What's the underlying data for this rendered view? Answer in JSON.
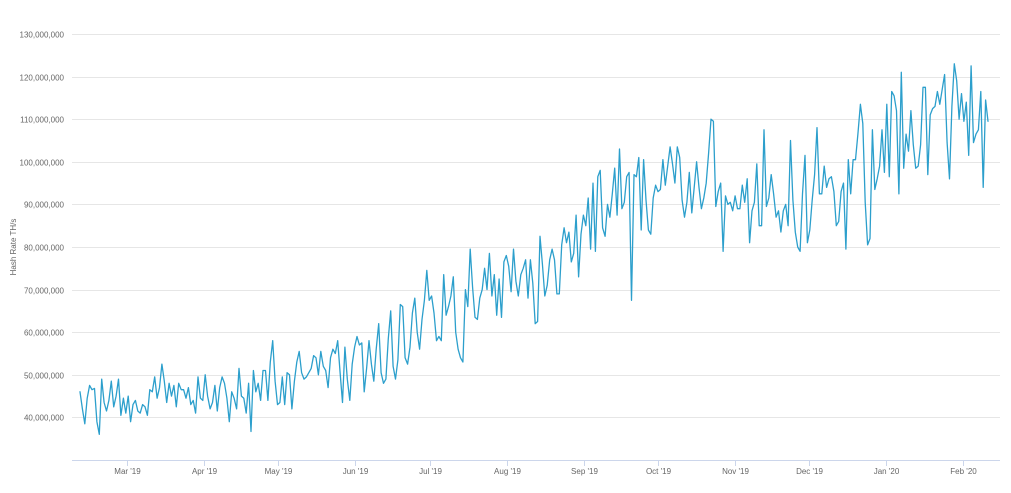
{
  "chart_data": {
    "type": "line",
    "title": "",
    "xlabel": "",
    "ylabel": "Hash Rate TH/s",
    "ylim": [
      30000000,
      130000000
    ],
    "grid": true,
    "colors": {
      "series": "#2c9fcc"
    },
    "y_ticks": [
      {
        "value": 40000000,
        "label": "40,000,000"
      },
      {
        "value": 50000000,
        "label": "50,000,000"
      },
      {
        "value": 60000000,
        "label": "60,000,000"
      },
      {
        "value": 70000000,
        "label": "70,000,000"
      },
      {
        "value": 80000000,
        "label": "80,000,000"
      },
      {
        "value": 90000000,
        "label": "90,000,000"
      },
      {
        "value": 100000000,
        "label": "100,000,000"
      },
      {
        "value": 110000000,
        "label": "110,000,000"
      },
      {
        "value": 120000000,
        "label": "120,000,000"
      },
      {
        "value": 130000000,
        "label": "130,000,000"
      }
    ],
    "x_ticks": [
      {
        "date": "2019-03-01",
        "label": "Mar '19"
      },
      {
        "date": "2019-04-01",
        "label": "Apr '19"
      },
      {
        "date": "2019-05-01",
        "label": "May '19"
      },
      {
        "date": "2019-06-01",
        "label": "Jun '19"
      },
      {
        "date": "2019-07-01",
        "label": "Jul '19"
      },
      {
        "date": "2019-08-01",
        "label": "Aug '19"
      },
      {
        "date": "2019-09-01",
        "label": "Sep '19"
      },
      {
        "date": "2019-10-01",
        "label": "Oct '19"
      },
      {
        "date": "2019-11-01",
        "label": "Nov '19"
      },
      {
        "date": "2019-12-01",
        "label": "Dec '19"
      },
      {
        "date": "2020-01-01",
        "label": "Jan '20"
      },
      {
        "date": "2020-02-01",
        "label": "Feb '20"
      }
    ],
    "series": [
      {
        "x_start": "2019-02-10",
        "x_end": "2020-02-11",
        "values": [
          46000000,
          42000000,
          38500000,
          44500000,
          47500000,
          46500000,
          46800000,
          39000000,
          36000000,
          49000000,
          43500000,
          41500000,
          44000000,
          48500000,
          42500000,
          45000000,
          49000000,
          40500000,
          44500000,
          41000000,
          45000000,
          39000000,
          43000000,
          44000000,
          41500000,
          41000000,
          43000000,
          42500000,
          40500000,
          46500000,
          46000000,
          49500000,
          44500000,
          47000000,
          52500000,
          48500000,
          43500000,
          48000000,
          45000000,
          47500000,
          42500000,
          48000000,
          46500000,
          46500000,
          44500000,
          47000000,
          43000000,
          44000000,
          41000000,
          49500000,
          44500000,
          44000000,
          50000000,
          45000000,
          42000000,
          43500000,
          47500000,
          41500000,
          47000000,
          49500000,
          48000000,
          44500000,
          39000000,
          46000000,
          44500000,
          42000000,
          51500000,
          45000000,
          44500000,
          41000000,
          48000000,
          36700000,
          51000000,
          46000000,
          48000000,
          44000000,
          51000000,
          51000000,
          44000000,
          53000000,
          58000000,
          48500000,
          43000000,
          43500000,
          49500000,
          43000000,
          50500000,
          50000000,
          42000000,
          48500000,
          53000000,
          55500000,
          50500000,
          49000000,
          49500000,
          50500000,
          51500000,
          54500000,
          54000000,
          50000000,
          55500000,
          52000000,
          51000000,
          47000000,
          54000000,
          56000000,
          55000000,
          58000000,
          50500000,
          43500000,
          56500000,
          49000000,
          44000000,
          52500000,
          56500000,
          59000000,
          57000000,
          57500000,
          46000000,
          51500000,
          58000000,
          52500000,
          48500000,
          56000000,
          62000000,
          50500000,
          48000000,
          49000000,
          58500000,
          65000000,
          52000000,
          49000000,
          53500000,
          66500000,
          66000000,
          54000000,
          52500000,
          56500000,
          64500000,
          68000000,
          60000000,
          56000000,
          63000000,
          67500000,
          74500000,
          67500000,
          68500000,
          64500000,
          58000000,
          59000000,
          58000000,
          73500000,
          64000000,
          66000000,
          68500000,
          73000000,
          60000000,
          56000000,
          54000000,
          53000000,
          70000000,
          66000000,
          79500000,
          70500000,
          63500000,
          63000000,
          68000000,
          70000000,
          75000000,
          70000000,
          78500000,
          68500000,
          73500000,
          64000000,
          72500000,
          63500000,
          76500000,
          78000000,
          75500000,
          69500000,
          79500000,
          72000000,
          68500000,
          73500000,
          75000000,
          77000000,
          68000000,
          77000000,
          71500000,
          62000000,
          62500000,
          82500000,
          76000000,
          68500000,
          71000000,
          77000000,
          79500000,
          77000000,
          69000000,
          69000000,
          80500000,
          84500000,
          81000000,
          83500000,
          76500000,
          78500000,
          87500000,
          73000000,
          83000000,
          87500000,
          85000000,
          91500000,
          79500000,
          95000000,
          79000000,
          96500000,
          98000000,
          84500000,
          82500000,
          90000000,
          87000000,
          92500000,
          98500000,
          87500000,
          103000000,
          89000000,
          90500000,
          96500000,
          97500000,
          67500000,
          97000000,
          96500000,
          101000000,
          84000000,
          100500000,
          91000000,
          84000000,
          83000000,
          91500000,
          94500000,
          93000000,
          93500000,
          100500000,
          94500000,
          99000000,
          103500000,
          99500000,
          95000000,
          103500000,
          101000000,
          91000000,
          87000000,
          90500000,
          97500000,
          88000000,
          94000000,
          100000000,
          94000000,
          89000000,
          91500000,
          95000000,
          102000000,
          110000000,
          109500000,
          89500000,
          93000000,
          95000000,
          79000000,
          92000000,
          90000000,
          90500000,
          88500000,
          92000000,
          89000000,
          89000000,
          94500000,
          90500000,
          96000000,
          81000000,
          88500000,
          90500000,
          99500000,
          85000000,
          85000000,
          107500000,
          89500000,
          91500000,
          97000000,
          92500000,
          87000000,
          88500000,
          83500000,
          88500000,
          90000000,
          85000000,
          105000000,
          91000000,
          83500000,
          80000000,
          79000000,
          92500000,
          101500000,
          81000000,
          84000000,
          91000000,
          97000000,
          108000000,
          92500000,
          92500000,
          99000000,
          94000000,
          96000000,
          96500000,
          93000000,
          85000000,
          86000000,
          93000000,
          95000000,
          79500000,
          100500000,
          92500000,
          100500000,
          100500000,
          106500000,
          113500000,
          109000000,
          90500000,
          80500000,
          82000000,
          107500000,
          93500000,
          96000000,
          99000000,
          107500000,
          97500000,
          113500000,
          96500000,
          116500000,
          115500000,
          112000000,
          92500000,
          121000000,
          98500000,
          106500000,
          102500000,
          112000000,
          104000000,
          98500000,
          99000000,
          104000000,
          117500000,
          117500000,
          97000000,
          111000000,
          112500000,
          113000000,
          116500000,
          113500000,
          117000000,
          120500000,
          104500000,
          96000000,
          113000000,
          123000000,
          119000000,
          110000000,
          116000000,
          109500000,
          114000000,
          101500000,
          122500000,
          104500000,
          106500000,
          107500000,
          116500000,
          94000000,
          114500000,
          109500000
        ]
      }
    ]
  }
}
